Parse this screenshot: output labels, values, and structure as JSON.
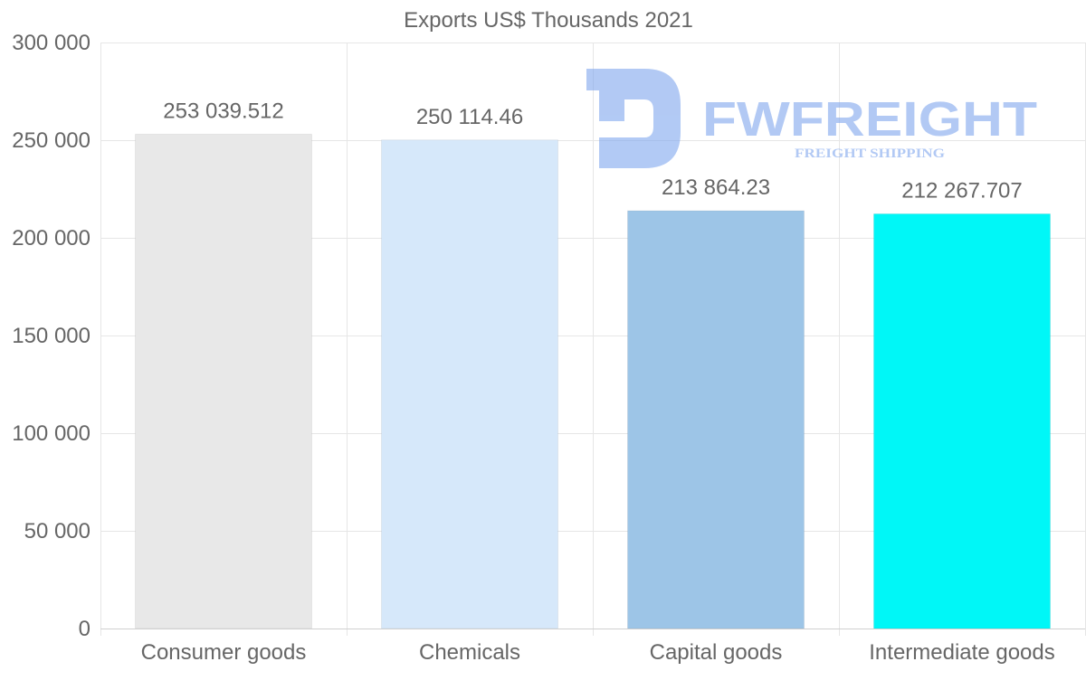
{
  "chart_data": {
    "type": "bar",
    "title": "Exports US$ Thousands 2021",
    "categories": [
      "Consumer goods",
      "Chemicals",
      "Capital goods",
      "Intermediate goods"
    ],
    "values": [
      253039.512,
      250114.46,
      213864.23,
      212267.707
    ],
    "value_labels": [
      "253 039.512",
      "250 114.46",
      "213 864.23",
      "212 267.707"
    ],
    "colors": [
      "#e8e8e8",
      "#d6e8fa",
      "#9dc5e7",
      "#00f7f7"
    ],
    "ylim": [
      0,
      300000
    ],
    "yticks": [
      0,
      50000,
      100000,
      150000,
      200000,
      250000,
      300000
    ],
    "ytick_labels": [
      "0",
      "50 000",
      "100 000",
      "150 000",
      "200 000",
      "250 000",
      "300 000"
    ],
    "xlabel": "",
    "ylabel": "",
    "grid": true,
    "legend": "none"
  },
  "watermark": {
    "brand": "FWFREIGHT",
    "tagline": "FREIGHT SHIPPING",
    "color": "#7fa6ee"
  }
}
